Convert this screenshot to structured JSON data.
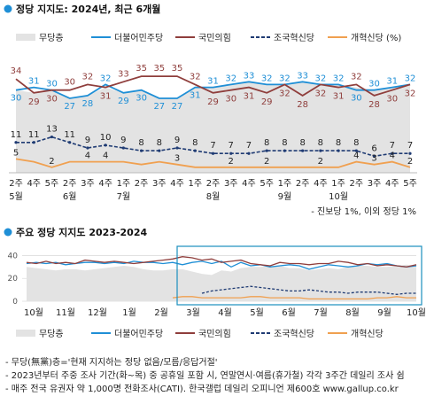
{
  "chart_data": [
    {
      "type": "line",
      "title": "정당 지지도: 2024년, 최근 6개월",
      "legend_position": "top",
      "categories": [
        "2주",
        "4주",
        "5주",
        "2주",
        "3주",
        "4주",
        "1주",
        "2주",
        "3주",
        "4주",
        "1주",
        "2주",
        "3주",
        "4주",
        "5주",
        "1주",
        "2주",
        "4주",
        "1주",
        "2주",
        "3주",
        "4주",
        "5주"
      ],
      "month_labels": [
        {
          "label": "5월",
          "index": 0
        },
        {
          "label": "6월",
          "index": 3
        },
        {
          "label": "7월",
          "index": 6
        },
        {
          "label": "8월",
          "index": 11
        },
        {
          "label": "9월",
          "index": 15
        },
        {
          "label": "10월",
          "index": 18
        }
      ],
      "ylim": [
        0,
        45
      ],
      "series": [
        {
          "name": "무당층",
          "type": "area",
          "color": "#e3e3e3",
          "values": [
            30,
            29,
            30,
            27,
            28,
            31,
            29,
            30,
            27,
            27,
            31,
            31,
            32,
            33,
            32,
            32,
            33,
            32,
            32,
            31,
            30,
            31,
            32
          ]
        },
        {
          "name": "더불어민주당",
          "color": "#1f8fd6",
          "values": [
            30,
            31,
            30,
            27,
            28,
            32,
            29,
            30,
            27,
            27,
            31,
            31,
            32,
            33,
            32,
            32,
            33,
            32,
            32,
            30,
            30,
            31,
            32
          ],
          "labels": [
            "30",
            "31",
            "30",
            "27",
            "28",
            "32",
            "29",
            "30",
            "27",
            "27",
            "31",
            "31",
            "32",
            "33",
            "32",
            "32",
            "33",
            "32",
            "32",
            "30",
            "30",
            "31",
            "32"
          ]
        },
        {
          "name": "국민의힘",
          "color": "#8f3e3c",
          "values": [
            34,
            29,
            30,
            30,
            32,
            31,
            33,
            35,
            35,
            35,
            32,
            29,
            30,
            31,
            29,
            32,
            28,
            32,
            31,
            32,
            28,
            30,
            32
          ],
          "labels": [
            "34",
            "29",
            "30",
            "30",
            "32",
            "31",
            "33",
            "35",
            "35",
            "35",
            "32",
            "29",
            "30",
            "31",
            "29",
            "32",
            "28",
            "32",
            "31",
            "32",
            "28",
            "30",
            "32"
          ]
        },
        {
          "name": "조국혁신당",
          "color": "#1f3b73",
          "dashed": true,
          "values": [
            11,
            11,
            13,
            11,
            9,
            10,
            9,
            8,
            8,
            9,
            8,
            7,
            7,
            7,
            8,
            8,
            8,
            8,
            8,
            8,
            6,
            7,
            7
          ],
          "labels": [
            "11",
            "11",
            "13",
            "11",
            "9",
            "10",
            "9",
            "8",
            "8",
            "9",
            "8",
            "7",
            "7",
            "7",
            "8",
            "8",
            "8",
            "8",
            "8",
            "8",
            "6",
            "7",
            "7"
          ]
        },
        {
          "name": "개혁신당 (%)",
          "color": "#f0a050",
          "values": [
            5,
            4,
            2,
            4,
            4,
            4,
            4,
            3,
            4,
            3,
            2,
            2,
            2,
            2,
            2,
            2,
            2,
            2,
            2,
            4,
            3,
            4,
            2
          ],
          "labels": [
            "5",
            "",
            "2",
            "",
            "4",
            "4",
            "",
            "",
            "",
            "3",
            "",
            "",
            "2",
            "",
            "2",
            "",
            "",
            "2",
            "",
            "4",
            "3",
            "4",
            "2"
          ]
        }
      ],
      "note": "- 진보당 1%, 이외 정당 1%"
    },
    {
      "type": "line",
      "title": "주요 정당 지지도 2023-2024",
      "ylim": [
        0,
        45
      ],
      "yticks": [
        0,
        20,
        40
      ],
      "x_tick_labels": [
        "10월",
        "11월",
        "12월",
        "1월",
        "2월",
        "3월",
        "4월",
        "5월",
        "6월",
        "7월",
        "8월",
        "9월",
        "10월"
      ],
      "highlight": "5월–10월",
      "series": [
        {
          "name": "무당층",
          "type": "area",
          "color": "#e3e3e3",
          "values": [
            30,
            29,
            28,
            27,
            28,
            28,
            27,
            28,
            29,
            30,
            31,
            30,
            28,
            27,
            27,
            28,
            28,
            26,
            24,
            23,
            27,
            26,
            29,
            30,
            30,
            31,
            31,
            29,
            29,
            27,
            28,
            29,
            28,
            30,
            31,
            31,
            30,
            30,
            31,
            32,
            31
          ]
        },
        {
          "name": "더불어민주당",
          "color": "#1f8fd6",
          "values": [
            33,
            34,
            33,
            34,
            32,
            33,
            34,
            34,
            33,
            34,
            33,
            35,
            34,
            34,
            33,
            34,
            32,
            34,
            35,
            33,
            35,
            30,
            34,
            31,
            32,
            30,
            31,
            32,
            31,
            28,
            30,
            32,
            31,
            30,
            31,
            33,
            32,
            33,
            31,
            30,
            31
          ]
        },
        {
          "name": "국민의힘",
          "color": "#8f3e3c",
          "values": [
            34,
            33,
            35,
            33,
            34,
            33,
            36,
            35,
            34,
            35,
            34,
            33,
            34,
            35,
            36,
            37,
            39,
            38,
            36,
            37,
            34,
            35,
            36,
            33,
            32,
            31,
            34,
            33,
            33,
            32,
            33,
            33,
            35,
            34,
            32,
            33,
            31,
            32,
            31,
            30,
            32
          ]
        },
        {
          "name": "조국혁신당",
          "color": "#1f3b73",
          "dashed": true,
          "values": [
            null,
            null,
            null,
            null,
            null,
            null,
            null,
            null,
            null,
            null,
            null,
            null,
            null,
            null,
            null,
            null,
            null,
            null,
            7,
            9,
            10,
            11,
            12,
            13,
            12,
            11,
            10,
            9,
            9,
            10,
            9,
            8,
            8,
            7,
            8,
            8,
            8,
            7,
            6,
            7,
            7
          ]
        },
        {
          "name": "개혁신당",
          "color": "#f0a050",
          "values": [
            null,
            null,
            null,
            null,
            null,
            null,
            null,
            null,
            null,
            null,
            null,
            null,
            null,
            null,
            null,
            3,
            4,
            4,
            3,
            3,
            3,
            3,
            3,
            4,
            4,
            3,
            3,
            3,
            3,
            2,
            2,
            2,
            2,
            2,
            2,
            2,
            3,
            3,
            4,
            3,
            3
          ]
        }
      ]
    }
  ],
  "notes": [
    "- 무당(無黨)층='현재 지지하는 정당 없음/모름/응답거절'",
    "- 2023년부터 주중 조사 기간(화~목) 중 공휴일 포함 시, 연말연시·여름(휴가철) 각각 3주간 데일리 조사 쉼",
    "- 매주 전국 유권자 약 1,000명 전화조사(CATI). 한국갤럽 데일리 오피니언 제600호 www.gallup.co.kr"
  ]
}
